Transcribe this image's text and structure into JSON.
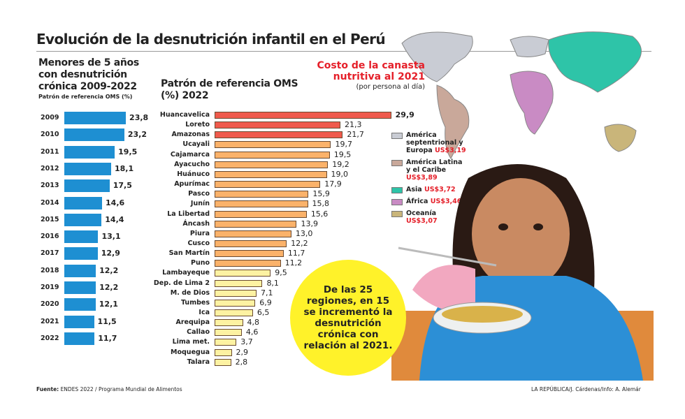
{
  "title": "Evolución de la desnutrición infantil en el Perú",
  "colors": {
    "left_bars": "#1e8fd2",
    "top_regions": "#ef5a4c",
    "mid_regions": "#fbb26a",
    "low_regions": "#fdf2a2",
    "bubble": "#fff22a",
    "price": "#e5202a"
  },
  "chart_data": [
    {
      "type": "bar",
      "orientation": "horizontal",
      "title": "Menores de 5 años con desnutrición crónica 2009-2022",
      "subtitle": "Patrón de referencia OMS (%)",
      "categories": [
        "2009",
        "2010",
        "2011",
        "2012",
        "2013",
        "2014",
        "2015",
        "2016",
        "2017",
        "2018",
        "2019",
        "2020",
        "2021",
        "2022"
      ],
      "values": [
        23.8,
        23.2,
        19.5,
        18.1,
        17.5,
        14.6,
        14.4,
        13.1,
        12.9,
        12.2,
        12.2,
        12.1,
        11.5,
        11.7
      ],
      "labels": [
        "23,8",
        "23,2",
        "19,5",
        "18,1",
        "17,5",
        "14,6",
        "14,4",
        "13,1",
        "12,9",
        "12,2",
        "12,2",
        "12,1",
        "11,5",
        "11,7"
      ],
      "xlim": [
        0,
        24
      ]
    },
    {
      "type": "bar",
      "orientation": "horizontal",
      "title": "Patrón de referencia OMS (%) 2022",
      "categories": [
        "Huancavelica",
        "Loreto",
        "Amazonas",
        "Ucayali",
        "Cajamarca",
        "Ayacucho",
        "Huánuco",
        "Apurímac",
        "Pasco",
        "Junín",
        "La Libertad",
        "Áncash",
        "Piura",
        "Cusco",
        "San Martín",
        "Puno",
        "Lambayeque",
        "Dep. de Lima 2",
        "M. de Dios",
        "Tumbes",
        "Ica",
        "Arequipa",
        "Callao",
        "Lima met.",
        "Moquegua",
        "Talara"
      ],
      "values": [
        29.9,
        21.3,
        21.7,
        19.7,
        19.5,
        19.2,
        19.0,
        17.9,
        15.9,
        15.8,
        15.6,
        13.9,
        13.0,
        12.2,
        11.7,
        11.2,
        9.5,
        8.1,
        7.1,
        6.9,
        6.5,
        4.8,
        4.6,
        3.7,
        2.9,
        2.8
      ],
      "labels": [
        "29,9",
        "21,3",
        "21,7",
        "19,7",
        "19,5",
        "19,2",
        "19,0",
        "17,9",
        "15,9",
        "15,8",
        "15,6",
        "13,9",
        "13,0",
        "12,2",
        "11,7",
        "11,2",
        "9,5",
        "8,1",
        "7,1",
        "6,9",
        "6,5",
        "4,8",
        "4,6",
        "3,7",
        "2,9",
        "2,8"
      ],
      "tiers": [
        "top",
        "top",
        "top",
        "mid",
        "mid",
        "mid",
        "mid",
        "mid",
        "mid",
        "mid",
        "mid",
        "mid",
        "mid",
        "mid",
        "mid",
        "mid",
        "low",
        "low",
        "low",
        "low",
        "low",
        "low",
        "low",
        "low",
        "low",
        "low"
      ],
      "xlim": [
        0,
        30
      ]
    }
  ],
  "cost": {
    "title": "Costo de la canasta nutritiva al 2021",
    "subtitle": "(por persona al día)",
    "legend": [
      {
        "region": "América septentrional y Europa",
        "price": "US$3,19",
        "color": "#c9ccd4"
      },
      {
        "region": "América Latina y el Caribe",
        "price": "US$3,89",
        "color": "#c9a89a"
      },
      {
        "region": "Asia",
        "price": "US$3,72",
        "color": "#2ec4a8"
      },
      {
        "region": "África",
        "price": "US$3,46",
        "color": "#c98bc4"
      },
      {
        "region": "Oceanía",
        "price": "US$3,07",
        "color": "#c9b57a"
      }
    ]
  },
  "bubble": "De las 25 regiones, en 15 se incrementó la desnutrición crónica con relación al 2021.",
  "footer": {
    "source_label": "Fuente:",
    "source": " ENDES 2022 / Programa Mundial de Alimentos",
    "credit": "LA REPÚBLICA/J. Cárdenas/Info: A. Alemár"
  }
}
